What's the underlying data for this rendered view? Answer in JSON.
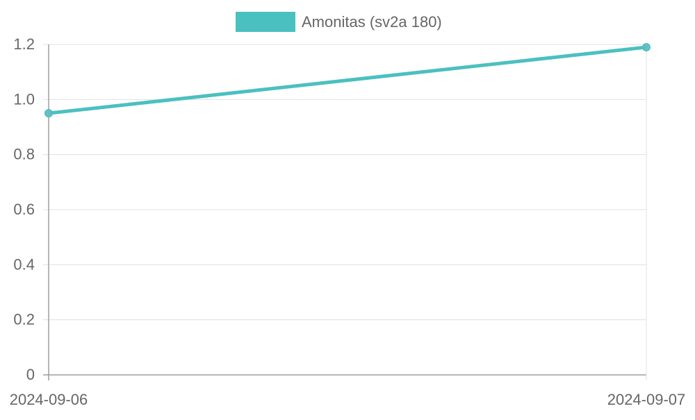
{
  "chart_data": {
    "type": "line",
    "title": "",
    "xlabel": "",
    "ylabel": "",
    "x": [
      "2024-09-06",
      "2024-09-07"
    ],
    "series": [
      {
        "name": "Amonitas (sv2a 180)",
        "values": [
          0.95,
          1.19
        ],
        "color": "#4bc0c0"
      }
    ],
    "y_ticks": [
      "0",
      "0.2",
      "0.4",
      "0.6",
      "0.8",
      "1.0",
      "1.2"
    ],
    "ylim": [
      0,
      1.2
    ],
    "grid": true,
    "legend": "top-center"
  },
  "colors": {
    "grid": "#e0e0e0",
    "axis": "#9e9e9e",
    "tick_text": "#666666",
    "marker_fill": "#6ab8c4",
    "marker_stroke": "#4bc0c0"
  }
}
